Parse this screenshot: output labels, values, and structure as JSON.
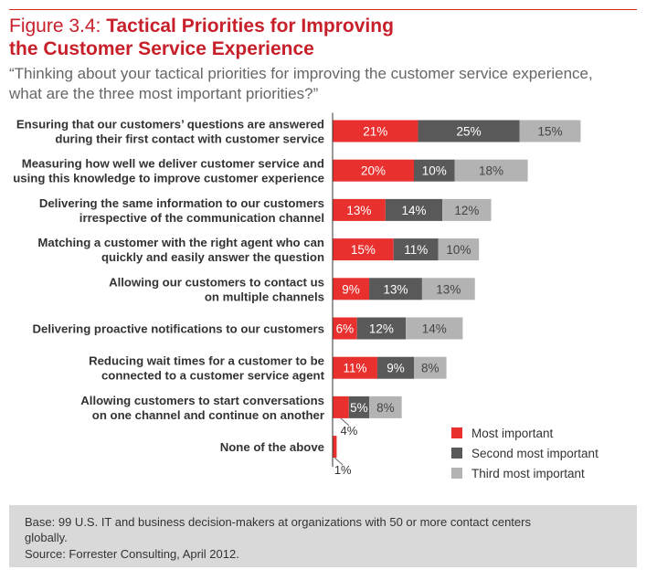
{
  "figure": {
    "number": "Figure 3.4: ",
    "title_line1": "Tactical Priorities for Improving",
    "title_line2": "the Customer Service Experience",
    "question": "“Thinking about your tactical priorities for improving the customer service experience, what are the three most important priorities?”"
  },
  "chart_data": {
    "type": "bar",
    "orientation": "horizontal",
    "stacked": true,
    "unit": "%",
    "categories": [
      [
        "Ensuring that our customers’ questions are answered",
        "during their first contact with customer service"
      ],
      [
        "Measuring how well we deliver customer service and",
        "using this knowledge to improve customer experience"
      ],
      [
        "Delivering the same information to our customers",
        "irrespective of the communication channel"
      ],
      [
        "Matching a customer with the right agent who can",
        "quickly and easily answer the question"
      ],
      [
        "Allowing our customers to contact us",
        "on multiple channels"
      ],
      [
        "Delivering proactive notifications to our customers"
      ],
      [
        "Reducing wait times for a customer to be",
        "connected to a customer service agent"
      ],
      [
        "Allowing customers to start conversations",
        "on one channel and continue on another"
      ],
      [
        "None of the above"
      ]
    ],
    "series": [
      {
        "name": "Most important",
        "color": "#e8302e",
        "values": [
          21,
          20,
          13,
          15,
          9,
          6,
          11,
          4,
          1
        ]
      },
      {
        "name": "Second most important",
        "color": "#595959",
        "values": [
          25,
          10,
          14,
          11,
          13,
          12,
          9,
          5,
          0
        ]
      },
      {
        "name": "Third most important",
        "color": "#b3b3b3",
        "values": [
          15,
          18,
          12,
          10,
          13,
          14,
          8,
          8,
          0
        ]
      }
    ],
    "callouts": [
      {
        "row": 7,
        "series": 0,
        "label": "4%"
      },
      {
        "row": 8,
        "series": 0,
        "label": "1%"
      }
    ],
    "legend_position": "bottom-right",
    "grid": false
  },
  "notes": {
    "base": "Base: 99 U.S. IT and business decision-makers at organizations with 50 or more contact centers globally.",
    "source": "Source: Forrester Consulting, April 2012."
  }
}
